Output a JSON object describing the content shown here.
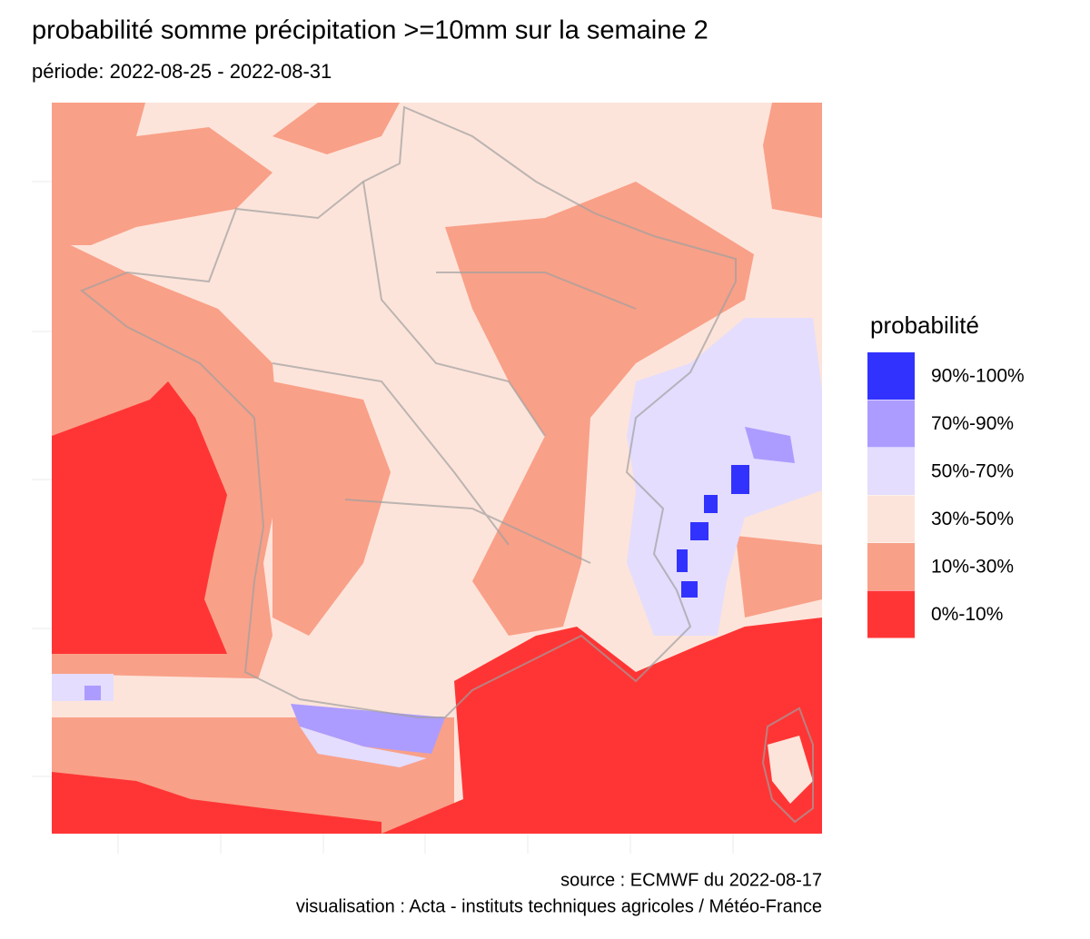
{
  "header": {
    "title": "probabilité somme précipitation >=10mm sur la semaine 2",
    "subtitle": "période: 2022-08-25 - 2022-08-31"
  },
  "legend": {
    "title": "probabilité",
    "items": [
      {
        "label": "90%-100%",
        "color": "#3232ff"
      },
      {
        "label": "70%-90%",
        "color": "#ad9cff"
      },
      {
        "label": "50%-70%",
        "color": "#e4ddfd"
      },
      {
        "label": "30%-50%",
        "color": "#fde4da"
      },
      {
        "label": "10%-30%",
        "color": "#f9a088"
      },
      {
        "label": "0%-10%",
        "color": "#ff3535"
      }
    ]
  },
  "caption": {
    "line1": "source : ECMWF du 2022-08-17",
    "line2": "visualisation : Acta - instituts techniques agricoles / Météo-France"
  }
}
